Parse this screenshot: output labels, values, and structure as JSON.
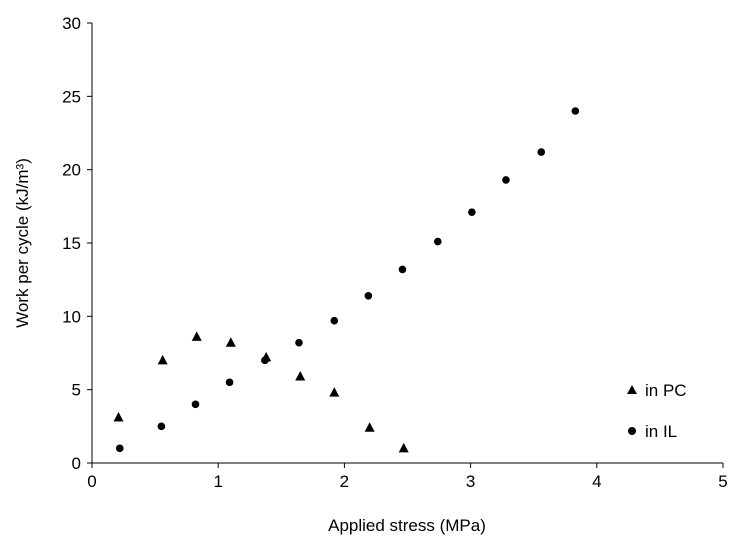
{
  "chart_data": {
    "type": "scatter",
    "title": "",
    "xlabel": "Applied stress (MPa)",
    "ylabel": "Work per cycle (kJ/m³)",
    "xlim": [
      0,
      5
    ],
    "ylim": [
      0,
      30
    ],
    "xticks": [
      "0",
      "1",
      "2",
      "3",
      "4",
      "5"
    ],
    "yticks": [
      "0",
      "5",
      "10",
      "15",
      "20",
      "25",
      "30"
    ],
    "grid": false,
    "legend_position": "bottom-right",
    "series": [
      {
        "name": "in PC",
        "marker": "triangle",
        "color": "#000000",
        "x": [
          0.21,
          0.56,
          0.83,
          1.1,
          1.38,
          1.65,
          1.92,
          2.2,
          2.47
        ],
        "y": [
          3.1,
          7.0,
          8.6,
          8.2,
          7.2,
          5.9,
          4.8,
          2.4,
          1.0
        ]
      },
      {
        "name": "in IL",
        "marker": "circle",
        "color": "#000000",
        "x": [
          0.22,
          0.55,
          0.82,
          1.09,
          1.37,
          1.64,
          1.92,
          2.19,
          2.46,
          2.74,
          3.01,
          3.28,
          3.56,
          3.83
        ],
        "y": [
          1.0,
          2.5,
          4.0,
          5.5,
          7.0,
          8.2,
          9.7,
          11.4,
          13.2,
          15.1,
          17.1,
          19.3,
          21.2,
          24.0
        ]
      }
    ]
  }
}
